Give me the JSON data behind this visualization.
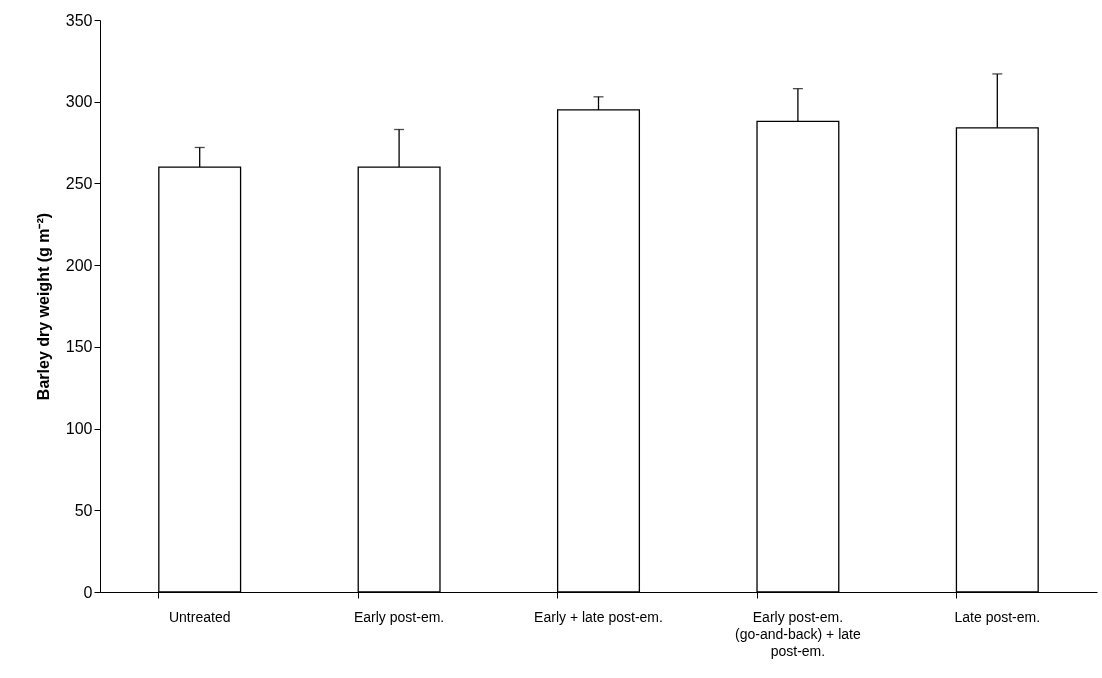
{
  "chart_data": {
    "type": "bar",
    "ylabel": "Barley dry weight (g m⁻²)",
    "categories": [
      "Untreated",
      "Early post-em.",
      "Early + late post-em.",
      "Early post-em. (go-and-back) + late post-em.",
      "Late post-em."
    ],
    "values": [
      260,
      260,
      295,
      288,
      284
    ],
    "errors": [
      [
        260,
        272
      ],
      [
        260,
        283
      ],
      [
        295,
        303
      ],
      [
        288,
        308
      ],
      [
        284,
        317
      ]
    ],
    "color": "#ffffff",
    "ylim": [
      0,
      350
    ],
    "yticks": [
      0,
      50,
      100,
      150,
      200,
      250,
      300,
      350
    ],
    "grid": false
  }
}
